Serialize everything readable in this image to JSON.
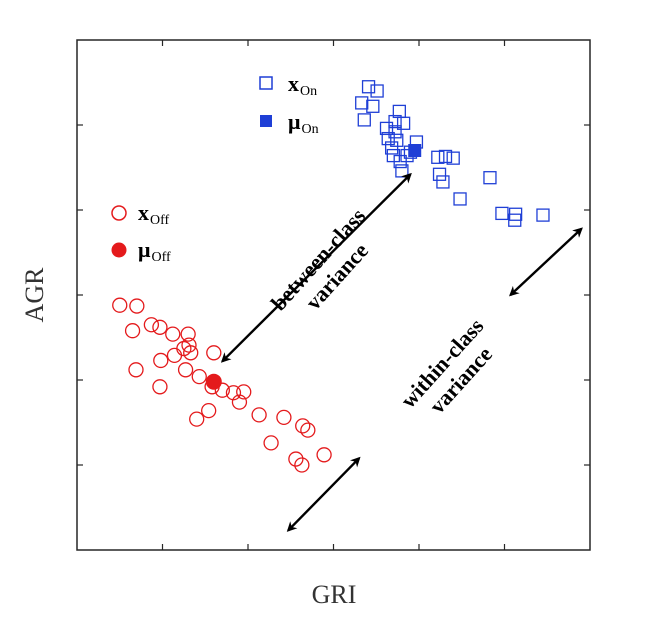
{
  "chart_data": {
    "type": "scatter",
    "xlabel": "GRI",
    "ylabel": "AGR",
    "xlim": [
      0,
      6
    ],
    "ylim": [
      0,
      6
    ],
    "xticks": [
      1,
      2,
      3,
      4,
      5
    ],
    "yticks": [
      1,
      2,
      3,
      4,
      5
    ],
    "tick_labels_shown": false,
    "grid": false,
    "legend": "inside",
    "series": [
      {
        "key": "on",
        "legend_main": "x",
        "legend_sub": "On",
        "mean_main": "μ",
        "mean_sub": "On",
        "color": "#1f3fd6",
        "marker": "open-square",
        "points": [
          [
            3.41,
            5.45
          ],
          [
            3.51,
            5.4
          ],
          [
            3.33,
            5.26
          ],
          [
            3.46,
            5.22
          ],
          [
            3.36,
            5.06
          ],
          [
            3.62,
            4.96
          ],
          [
            3.77,
            5.16
          ],
          [
            3.72,
            5.04
          ],
          [
            3.82,
            5.02
          ],
          [
            3.72,
            4.92
          ],
          [
            3.64,
            4.84
          ],
          [
            3.74,
            4.82
          ],
          [
            3.68,
            4.73
          ],
          [
            3.97,
            4.8
          ],
          [
            3.7,
            4.64
          ],
          [
            3.86,
            4.64
          ],
          [
            3.9,
            4.68
          ],
          [
            3.78,
            4.57
          ],
          [
            3.8,
            4.46
          ],
          [
            4.22,
            4.62
          ],
          [
            4.31,
            4.63
          ],
          [
            4.4,
            4.61
          ],
          [
            4.24,
            4.42
          ],
          [
            4.28,
            4.33
          ],
          [
            4.48,
            4.13
          ],
          [
            4.83,
            4.38
          ],
          [
            4.97,
            3.96
          ],
          [
            5.12,
            3.88
          ],
          [
            5.13,
            3.95
          ],
          [
            5.45,
            3.94
          ]
        ],
        "mean": [
          3.95,
          4.7
        ]
      },
      {
        "key": "off",
        "legend_main": "x",
        "legend_sub": "Off",
        "mean_main": "μ",
        "mean_sub": "Off",
        "color": "#e41a1c",
        "marker": "open-circle",
        "points": [
          [
            0.5,
            2.88
          ],
          [
            0.7,
            2.87
          ],
          [
            0.65,
            2.58
          ],
          [
            0.87,
            2.65
          ],
          [
            0.97,
            2.62
          ],
          [
            1.12,
            2.54
          ],
          [
            1.3,
            2.54
          ],
          [
            1.31,
            2.41
          ],
          [
            1.14,
            2.29
          ],
          [
            0.98,
            2.23
          ],
          [
            1.25,
            2.37
          ],
          [
            1.33,
            2.32
          ],
          [
            1.6,
            2.32
          ],
          [
            0.69,
            2.12
          ],
          [
            1.27,
            2.12
          ],
          [
            1.43,
            2.04
          ],
          [
            0.97,
            1.92
          ],
          [
            1.58,
            1.92
          ],
          [
            1.7,
            1.88
          ],
          [
            1.83,
            1.85
          ],
          [
            1.95,
            1.86
          ],
          [
            1.9,
            1.74
          ],
          [
            2.13,
            1.59
          ],
          [
            1.54,
            1.64
          ],
          [
            1.4,
            1.54
          ],
          [
            2.42,
            1.56
          ],
          [
            2.64,
            1.46
          ],
          [
            2.7,
            1.41
          ],
          [
            2.27,
            1.26
          ],
          [
            2.89,
            1.12
          ],
          [
            2.56,
            1.07
          ],
          [
            2.63,
            1.0
          ]
        ],
        "mean": [
          1.6,
          1.98
        ]
      }
    ],
    "arrows": [
      {
        "from": [
          1.7,
          2.22
        ],
        "to": [
          3.9,
          4.42
        ]
      },
      {
        "from": [
          5.07,
          3.0
        ],
        "to": [
          5.9,
          3.78
        ]
      },
      {
        "from": [
          2.47,
          0.23
        ],
        "to": [
          3.3,
          1.08
        ]
      }
    ],
    "annotations": [
      {
        "lines": [
          "between-class",
          "variance"
        ],
        "at": [
          2.95,
          3.3
        ],
        "angle": -48
      },
      {
        "lines": [
          "within-class",
          "variance"
        ],
        "at": [
          4.4,
          2.08
        ],
        "angle": -48
      }
    ]
  }
}
